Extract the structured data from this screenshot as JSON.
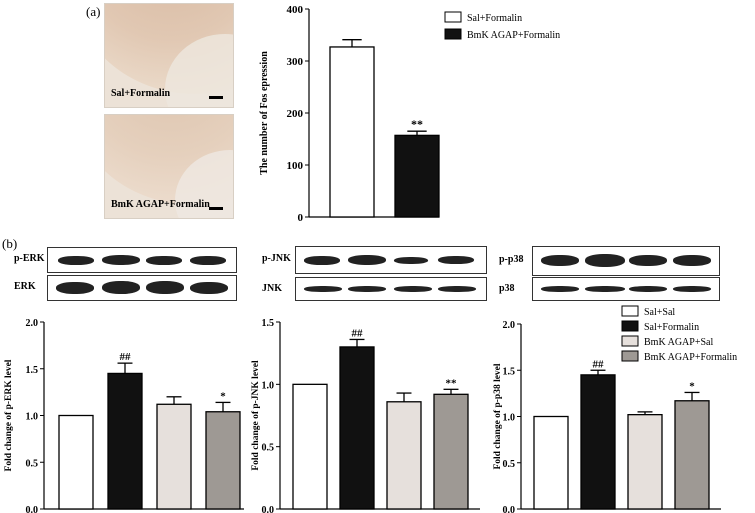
{
  "panel_a_label": "(a)",
  "panel_b_label": "(b)",
  "images": [
    {
      "caption": "Sal+Formalin"
    },
    {
      "caption": "BmK AGAP+Formalin"
    }
  ],
  "blots": [
    {
      "top_label": "p-ERK",
      "bottom_label": "ERK"
    },
    {
      "top_label": "p-JNK",
      "bottom_label": "JNK"
    },
    {
      "top_label": "p-p38",
      "bottom_label": "p38"
    }
  ],
  "colors": {
    "sal_sal": "#ffffff",
    "sal_formalin": "#111111",
    "agap_sal": "#e6e0dc",
    "agap_formalin": "#9e9994"
  },
  "chart_data": [
    {
      "type": "bar",
      "ylabel": "The number of Fos epression",
      "ylim": [
        0,
        400
      ],
      "yticks": [
        "0",
        "100",
        "200",
        "300",
        "400"
      ],
      "legend": [
        "Sal+Formalin",
        "BmK AGAP+Formalin"
      ],
      "legend_position": "top-right",
      "values": [
        327,
        157
      ],
      "errors": [
        14,
        8
      ],
      "annotations": [
        "",
        "**"
      ]
    },
    {
      "type": "bar",
      "ylabel": "Fold change of p-ERK level",
      "ylim": [
        0,
        2.0
      ],
      "yticks": [
        "0.0",
        "0.5",
        "1.0",
        "1.5",
        "2.0"
      ],
      "values": [
        1.0,
        1.45,
        1.12,
        1.04
      ],
      "errors": [
        0,
        0.11,
        0.08,
        0.1
      ],
      "annotations": [
        "",
        "##",
        "",
        "*"
      ]
    },
    {
      "type": "bar",
      "ylabel": "Fold change of p-JNK level",
      "ylim": [
        0,
        1.5
      ],
      "yticks": [
        "0.0",
        "0.5",
        "1.0",
        "1.5"
      ],
      "values": [
        1.0,
        1.3,
        0.86,
        0.92
      ],
      "errors": [
        0,
        0.06,
        0.07,
        0.04
      ],
      "annotations": [
        "",
        "##",
        "",
        "**"
      ]
    },
    {
      "type": "bar",
      "ylabel": "Fold change of p-p38 level",
      "ylim": [
        0,
        2.0
      ],
      "yticks": [
        "0.0",
        "0.5",
        "1.0",
        "1.5",
        "2.0"
      ],
      "legend": [
        "Sal+Sal",
        "Sal+Formalin",
        "BmK AGAP+Sal",
        "BmK AGAP+Formalin"
      ],
      "legend_position": "top-right",
      "values": [
        1.0,
        1.45,
        1.02,
        1.17
      ],
      "errors": [
        0,
        0.05,
        0.03,
        0.09
      ],
      "annotations": [
        "",
        "##",
        "",
        "*"
      ]
    }
  ]
}
